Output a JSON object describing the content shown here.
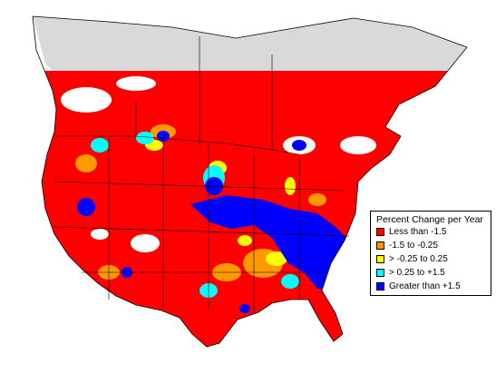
{
  "legend": {
    "title": "Percent Change per Year",
    "items": [
      {
        "label": "Less than -1.5",
        "color": "#ff0000"
      },
      {
        "label": "-1.5 to -0.25",
        "color": "#ff9900"
      },
      {
        "label": "> -0.25 to 0.25",
        "color": "#ffff00"
      },
      {
        "label": "> 0.25 to +1.5",
        "color": "#00ffff"
      },
      {
        "label": "Greater than +1.5",
        "color": "#0000ff"
      }
    ]
  },
  "colors": {
    "no_data": "#d9d9d9",
    "background": "#ffffff",
    "boundaries": "#000000"
  }
}
